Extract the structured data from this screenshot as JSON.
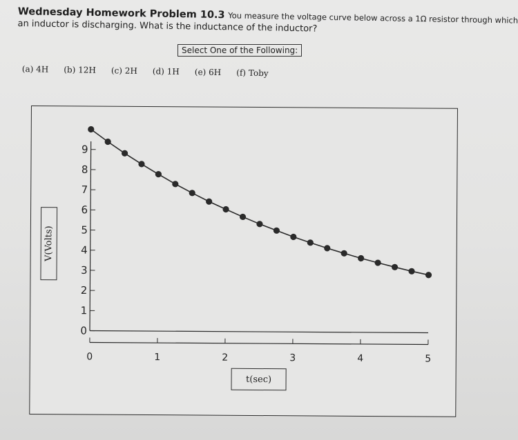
{
  "header": {
    "problem_title": "Wednesday Homework Problem 10.3",
    "question_line1": "You measure the voltage curve below across a 1Ω resistor through which",
    "question_line2": "an inductor is discharging. What is the inductance of the inductor?"
  },
  "select_prompt": "Select One of the Following:",
  "options": [
    {
      "label": "(a) 4H"
    },
    {
      "label": "(b) 12H"
    },
    {
      "label": "(c) 2H"
    },
    {
      "label": "(d) 1H"
    },
    {
      "label": "(e) 6H"
    },
    {
      "label": "(f) Toby"
    }
  ],
  "chart_data": {
    "type": "scatter",
    "xlabel": "t(sec)",
    "ylabel": "V(Volts)",
    "xlim": [
      0,
      5
    ],
    "ylim": [
      0,
      10
    ],
    "x_ticks": [
      0,
      1,
      2,
      3,
      4,
      5
    ],
    "y_ticks": [
      0,
      1,
      2,
      3,
      4,
      5,
      6,
      7,
      8,
      9
    ],
    "grid": false,
    "series": [
      {
        "x": [
          0,
          0.25,
          0.5,
          0.75,
          1,
          1.25,
          1.5,
          1.75,
          2,
          2.25,
          2.5,
          2.75,
          3,
          3.25,
          3.5,
          3.75,
          4,
          4.25,
          4.5,
          4.75,
          5
        ],
        "y": [
          10,
          9.39,
          8.82,
          8.29,
          7.79,
          7.31,
          6.87,
          6.45,
          6.07,
          5.7,
          5.35,
          5.03,
          4.72,
          4.44,
          4.17,
          3.92,
          3.68,
          3.46,
          3.25,
          3.05,
          2.87
        ],
        "color": "#2a2a2a"
      }
    ]
  }
}
